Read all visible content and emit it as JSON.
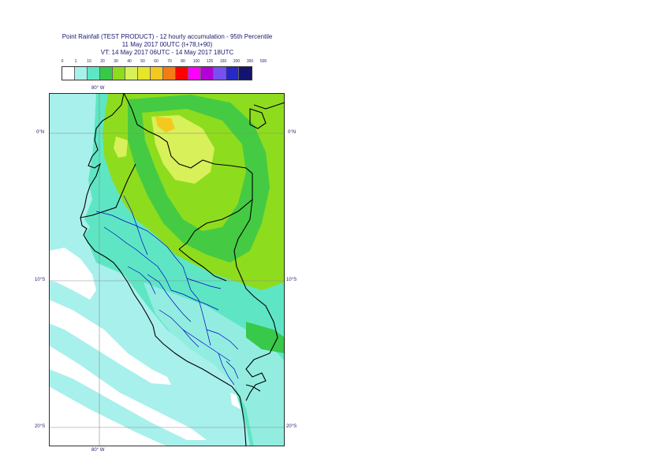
{
  "title": {
    "line1": "Point Rainfall (TEST PRODUCT) - 12 hourly accumulation - 95th Percentile",
    "line2": "11 May 2017 00UTC (t+78,t+90)",
    "line3": "VT: 14 May 2017 06UTC - 14 May 2017 18UTC"
  },
  "legend": {
    "labels": [
      "0",
      "1",
      "10",
      "20",
      "30",
      "40",
      "50",
      "60",
      "70",
      "80",
      "100",
      "125",
      "150",
      "200",
      "300",
      "500"
    ],
    "colors": [
      "#ffffff",
      "#a8f0ec",
      "#5ee6c4",
      "#38c84a",
      "#8edc1e",
      "#d8f05a",
      "#e6e628",
      "#f4c81e",
      "#f47c14",
      "#ff0000",
      "#ff00ff",
      "#b400d8",
      "#7850f0",
      "#2828c8",
      "#14146e"
    ]
  },
  "axes": {
    "lon_top": "80° W",
    "lon_bottom": "80° W",
    "lat_left": [
      "0°N",
      "10°S",
      "20°S"
    ],
    "lat_right": [
      "0°N",
      "10°S",
      "20°S"
    ]
  },
  "map_colors": {
    "ocean_light": "#a8f0ec",
    "land_teal": "#5ee6c4",
    "green": "#8edc1e",
    "green_dark": "#38c84a",
    "yellow": "#d8f05a",
    "orange": "#f4c81e",
    "white": "#ffffff",
    "coast": "#000000",
    "regions": "#0000cc",
    "grid": "#8a8a8a"
  }
}
